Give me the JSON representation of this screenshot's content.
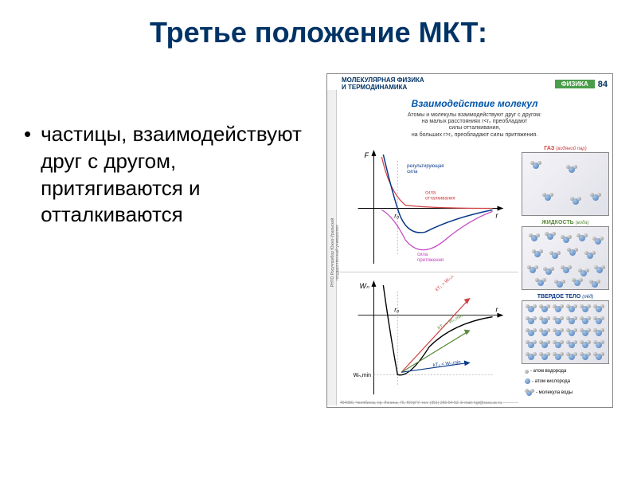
{
  "title": "Третье положение МКТ:",
  "bullet": "частицы, взаимодействуют друг с другом, притягиваются и отталкиваются",
  "poster": {
    "header_left_line1": "МОЛЕКУЛЯРНАЯ ФИЗИКА",
    "header_left_line2": "И ТЕРМОДИНАМИКА",
    "header_badge": "ФИЗИКА",
    "header_num": "84",
    "title": "Взаимодействие молекул",
    "desc_l1": "Атомы и молекулы взаимодействуют друг с другом:",
    "desc_l2": "на малых расстояниях r<r₀ преобладают",
    "desc_l3": "силы отталкивания,",
    "desc_l4": "на больших r>r₀ преобладают силы притяжения.",
    "chart1": {
      "y_axis": "F",
      "x_axis": "r",
      "r0": "r₀",
      "lbl_result": "результирующая сила",
      "lbl_repuls": "сила отталкивания",
      "lbl_attract": "сила притяжения",
      "color_result": "#0a3a8a",
      "color_repuls": "#d04040",
      "color_attract": "#c040c0"
    },
    "chart2": {
      "y_axis": "Wₙ",
      "x_axis": "r",
      "r0": "r₀",
      "wmin": "Wₙ,min",
      "lbl1": "kT₁ > Wₙ,min",
      "lbl2": "kT₂ ≈ Wₙ,min",
      "lbl3": "kT₃ < Wₙ,min",
      "color1": "#d04040",
      "color2": "#5a8a3a",
      "color3": "#0a3a8a"
    },
    "states": {
      "gas_label": "ГАЗ",
      "gas_sub": "(водяной пар)",
      "liquid_label": "ЖИДКОСТЬ",
      "liquid_sub": "(вода)",
      "solid_label": "ТВЕРДОЕ ТЕЛО",
      "solid_sub": "(лёд)",
      "gas_color": "#d04040",
      "liquid_color": "#5a8a3a",
      "solid_color": "#0a3a8a"
    },
    "legend": {
      "h": "- атом водорода",
      "o": "- атом кислорода",
      "mol": "- молекула воды"
    },
    "footer": "454080, Челябинск, пр. Ленина, 76, ЮУрГУ, тел. (351) 265-54-52. E-mail: kgt@susu.ac.ru",
    "spine": "РНТО Росучприбор  Южно-Уральский государственный университет"
  }
}
